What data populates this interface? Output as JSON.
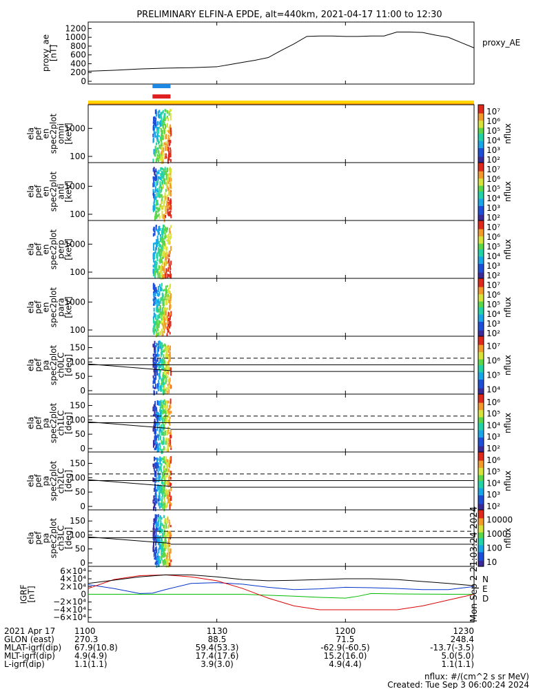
{
  "title": "PRELIMINARY ELFIN-A EPDE, alt=440km, 2021-04-17 11:00 to 12:30",
  "time_ticks": [
    "1100",
    "1130",
    "1200",
    "1230"
  ],
  "panel_labels": {
    "proxy_ae": [
      "proxy_ae",
      "[nT]"
    ],
    "omni": [
      "ela",
      "pef",
      "en",
      "spec2plot",
      "omni",
      "[keV]"
    ],
    "anti": [
      "ela",
      "pef",
      "en",
      "spec2plot",
      "anti",
      "[keV]"
    ],
    "perp": [
      "ela",
      "pef",
      "en",
      "spec2plot",
      "perp",
      "[keV]"
    ],
    "para": [
      "ela",
      "pef",
      "en",
      "spec2plot",
      "para",
      "[keV]"
    ],
    "ch0": [
      "ela",
      "pef",
      "pa",
      "spec2plot",
      "ch0LC",
      "[deg]"
    ],
    "ch1": [
      "ela",
      "pef",
      "pa",
      "spec2plot",
      "ch1LC",
      "[deg]"
    ],
    "ch2": [
      "ela",
      "pef",
      "pa",
      "spec2plot",
      "ch2LC",
      "[deg]"
    ],
    "ch3": [
      "ela",
      "pef",
      "pa",
      "spec2plot",
      "ch3LC",
      "[deg]"
    ],
    "igrf": [
      "IGRF",
      "[nT]"
    ]
  },
  "right_labels": {
    "proxy_ae": "proxy_AE",
    "nflux": "nflux",
    "igrf_components": [
      "N",
      "E",
      "D"
    ]
  },
  "colorbar_ticks": {
    "energy": [
      "10²",
      "10³",
      "10⁴",
      "10⁵",
      "10⁶",
      "10⁷"
    ],
    "ch0": [
      "10⁴",
      "10⁵",
      "10⁶",
      "10⁷"
    ],
    "ch1": [
      "10²",
      "10³",
      "10⁴",
      "10⁵",
      "10⁶"
    ],
    "ch2": [
      "10²",
      "10³",
      "10⁴",
      "10⁵",
      "10⁶"
    ],
    "ch3": [
      "10",
      "100",
      "1000",
      "10000"
    ]
  },
  "footer": {
    "row_labels": [
      "2021 Apr 17",
      "GLON (east)",
      "MLAT-igrf(dip)",
      "MLT-igrf(dip)",
      "L-igrf(dip)"
    ],
    "columns": [
      [
        "1100",
        "270.3",
        "67.9(10.8)",
        "4.9(4.9)",
        "1.1(1.1)"
      ],
      [
        "1130",
        "88.5",
        "59.4(53.3)",
        "17.4(17.6)",
        "3.9(3.0)"
      ],
      [
        "1200",
        "71.5",
        "-62.9(-60.5)",
        "15.2(16.0)",
        "4.9(4.4)"
      ],
      [
        "1230",
        "248.4",
        "-13.7(-3.5)",
        "5.0(5.0)",
        "1.1(1.1)"
      ]
    ],
    "note1": "nflux: #/(cm^2 s sr MeV)",
    "note2": "Created: Tue Sep  3 06:00:24 2024",
    "side_stamp": "Mon Sep  2 21:03:24 2024"
  },
  "colors": {
    "igrf_n": "#0033cc",
    "igrf_e": "#00bb00",
    "igrf_d": "#dd0000",
    "bar_blue": "#1e88e5",
    "bar_red": "#e02020",
    "bar_yellow": "#ffd600",
    "bar_orange": "#ff9800"
  },
  "chart_data": [
    {
      "type": "line",
      "name": "proxy_ae",
      "x_unit": "hours since 11:00 UT",
      "x": [
        0,
        0.1,
        0.2,
        0.3,
        0.4,
        0.5,
        0.55,
        0.6,
        0.65,
        0.7,
        0.75,
        0.8,
        0.85,
        0.9,
        0.95,
        1.0,
        1.05,
        1.1,
        1.15,
        1.2,
        1.25,
        1.3,
        1.35,
        1.4,
        1.45,
        1.5
      ],
      "values": [
        230,
        250,
        280,
        300,
        310,
        330,
        380,
        430,
        480,
        540,
        700,
        850,
        1020,
        1030,
        1030,
        1020,
        1020,
        1030,
        1030,
        1120,
        1120,
        1110,
        1050,
        1000,
        880,
        760
      ],
      "yticks": [
        0,
        200,
        400,
        600,
        800,
        1000,
        1200
      ],
      "ylim": [
        0,
        1300
      ]
    },
    {
      "type": "heatmap",
      "name": "energy spectrograms (omni, anti, perp, para)",
      "yscale": "log",
      "yticks": [
        100,
        1000
      ],
      "ylim": [
        60,
        7000
      ],
      "colorbar_range": [
        100,
        10000000
      ],
      "active_interval_hours": [
        0.25,
        0.32
      ]
    },
    {
      "type": "heatmap",
      "name": "pitch-angle spectrograms (ch0LC, ch1LC, ch2LC, ch3LC)",
      "yticks": [
        0,
        50,
        100,
        150
      ],
      "ylim": [
        0,
        180
      ],
      "reference_lines": {
        "dashed": 113,
        "solid_upper": 90,
        "solid_lower": 67,
        "sloped_start": 93,
        "sloped_end": 70
      },
      "active_interval_hours": [
        0.25,
        0.32
      ]
    },
    {
      "type": "line",
      "name": "IGRF",
      "x_unit": "hours since 11:00 UT",
      "yticks": [
        "6×10⁴",
        "4×10⁴",
        "2×10⁴",
        "0",
        "−2×10⁴",
        "−4×10⁴",
        "−6×10⁴"
      ],
      "ylim": [
        -65000,
        65000
      ],
      "series": [
        {
          "name": "N",
          "x": [
            0,
            0.1,
            0.2,
            0.25,
            0.3,
            0.4,
            0.5,
            0.6,
            0.7,
            0.8,
            0.9,
            1.0,
            1.1,
            1.2,
            1.3,
            1.4,
            1.5
          ],
          "values": [
            25000,
            15000,
            2000,
            3000,
            12000,
            28000,
            30000,
            26000,
            18000,
            12000,
            14000,
            18000,
            17000,
            15000,
            12000,
            12000,
            20000
          ]
        },
        {
          "name": "E",
          "x": [
            0,
            0.3,
            0.6,
            0.8,
            0.9,
            1.0,
            1.05,
            1.1,
            1.2,
            1.3,
            1.4,
            1.5
          ],
          "values": [
            0,
            0,
            0,
            -5000,
            -8000,
            -10000,
            -5000,
            2000,
            1000,
            500,
            0,
            0
          ]
        },
        {
          "name": "D",
          "x": [
            0,
            0.1,
            0.2,
            0.3,
            0.4,
            0.5,
            0.6,
            0.7,
            0.8,
            0.9,
            1.0,
            1.1,
            1.2,
            1.3,
            1.4,
            1.5
          ],
          "values": [
            15000,
            38000,
            48000,
            50000,
            45000,
            35000,
            15000,
            -10000,
            -30000,
            -40000,
            -40000,
            -40000,
            -40000,
            -30000,
            -15000,
            0
          ]
        },
        {
          "name": "",
          "x": [
            0,
            0.2,
            0.3,
            0.4,
            0.5,
            0.6,
            0.7,
            0.8,
            0.9,
            1.0,
            1.1,
            1.2,
            1.3,
            1.4,
            1.5
          ],
          "values": [
            28000,
            45000,
            50000,
            50000,
            45000,
            38000,
            35000,
            36000,
            38000,
            40000,
            40000,
            38000,
            33000,
            28000,
            22000
          ]
        }
      ]
    }
  ]
}
